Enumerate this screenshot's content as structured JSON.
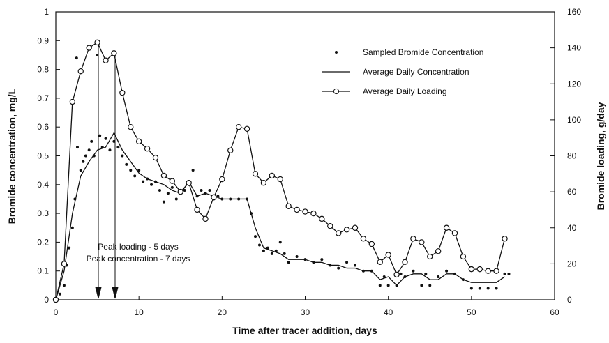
{
  "chart_data": {
    "type": "line",
    "xlabel": "Time  after  tracer  addition,  days",
    "ylabel": "Bromide   concentration,   mg/L",
    "y2label": "Bromide   loading,   g/day",
    "annotations": [
      "Peak loading  - 5 days",
      "Peak concentration - 7 days"
    ],
    "xlim": [
      0,
      60
    ],
    "xticks": [
      0,
      10,
      20,
      30,
      40,
      50,
      60
    ],
    "ylim": [
      0,
      1
    ],
    "yticks": [
      0,
      0.1,
      0.2,
      0.3,
      0.4,
      0.5,
      0.6,
      0.7,
      0.8,
      0.9,
      1
    ],
    "y2lim": [
      0,
      160
    ],
    "y2ticks": [
      0,
      20,
      40,
      60,
      80,
      100,
      120,
      140,
      160
    ],
    "legend": "upper right",
    "grid": false,
    "series": [
      {
        "name": "Sampled Bromide Concentration",
        "type": "scatter",
        "color": "#111",
        "axis": "y",
        "x": [
          0.5,
          1,
          1.3,
          1.6,
          2,
          2.3,
          2.5,
          2.6,
          3,
          3.3,
          3.6,
          4,
          4.3,
          4.6,
          5,
          5.3,
          5.6,
          6,
          6.5,
          7,
          7.5,
          8,
          8.5,
          9,
          9.5,
          10,
          10.5,
          11,
          11.5,
          12,
          12.5,
          13,
          13.5,
          14,
          14.5,
          15,
          15.5,
          16,
          16.5,
          17,
          17.5,
          18,
          18.5,
          19,
          19.5,
          20,
          21,
          22,
          23,
          23.5,
          24,
          24.5,
          25,
          25.5,
          26,
          26.5,
          27,
          27.5,
          28,
          29,
          30,
          31,
          32,
          33,
          34,
          35,
          36,
          37,
          38,
          39,
          39.5,
          40,
          41,
          41.5,
          42,
          43,
          44,
          44.5,
          45,
          46,
          47,
          48,
          49,
          50,
          51,
          52,
          53,
          54,
          54.5
        ],
        "values": [
          0.02,
          0.05,
          0.12,
          0.18,
          0.25,
          0.35,
          0.84,
          0.53,
          0.45,
          0.48,
          0.5,
          0.52,
          0.55,
          0.5,
          0.85,
          0.57,
          0.53,
          0.56,
          0.52,
          0.55,
          0.53,
          0.5,
          0.47,
          0.45,
          0.43,
          0.45,
          0.41,
          0.42,
          0.4,
          0.41,
          0.38,
          0.34,
          0.37,
          0.39,
          0.35,
          0.37,
          0.38,
          0.4,
          0.45,
          0.36,
          0.38,
          0.37,
          0.38,
          0.35,
          0.36,
          0.35,
          0.35,
          0.35,
          0.35,
          0.3,
          0.22,
          0.19,
          0.17,
          0.18,
          0.16,
          0.17,
          0.2,
          0.16,
          0.13,
          0.15,
          0.14,
          0.13,
          0.14,
          0.12,
          0.11,
          0.13,
          0.12,
          0.1,
          0.1,
          0.05,
          0.08,
          0.05,
          0.05,
          0.09,
          0.08,
          0.1,
          0.05,
          0.09,
          0.05,
          0.08,
          0.1,
          0.09,
          0.07,
          0.04,
          0.04,
          0.04,
          0.04,
          0.09,
          0.09
        ]
      },
      {
        "name": "Average Daily Concentration",
        "type": "line",
        "color": "#111",
        "axis": "y",
        "x": [
          0,
          1,
          2,
          3,
          4,
          5,
          6,
          7,
          8,
          9,
          10,
          11,
          12,
          13,
          14,
          15,
          16,
          17,
          18,
          19,
          20,
          21,
          22,
          23,
          24,
          25,
          26,
          27,
          28,
          29,
          30,
          31,
          32,
          33,
          34,
          35,
          36,
          37,
          38,
          39,
          40,
          41,
          42,
          43,
          44,
          45,
          46,
          47,
          48,
          49,
          50,
          51,
          52,
          53,
          54
        ],
        "values": [
          0,
          0.1,
          0.3,
          0.43,
          0.48,
          0.52,
          0.53,
          0.58,
          0.52,
          0.48,
          0.44,
          0.42,
          0.41,
          0.4,
          0.38,
          0.37,
          0.41,
          0.36,
          0.37,
          0.36,
          0.35,
          0.35,
          0.35,
          0.35,
          0.25,
          0.18,
          0.17,
          0.16,
          0.14,
          0.14,
          0.14,
          0.13,
          0.13,
          0.12,
          0.12,
          0.11,
          0.11,
          0.1,
          0.1,
          0.07,
          0.08,
          0.05,
          0.08,
          0.09,
          0.09,
          0.07,
          0.07,
          0.09,
          0.09,
          0.07,
          0.06,
          0.06,
          0.06,
          0.06,
          0.08
        ]
      },
      {
        "name": "Average Daily Loading",
        "type": "line-marker",
        "color": "#111",
        "axis": "y2",
        "x": [
          0,
          1,
          2,
          3,
          4,
          5,
          6,
          7,
          8,
          9,
          10,
          11,
          12,
          13,
          14,
          15,
          16,
          17,
          18,
          19,
          20,
          21,
          22,
          23,
          24,
          25,
          26,
          27,
          28,
          29,
          30,
          31,
          32,
          33,
          34,
          35,
          36,
          37,
          38,
          39,
          40,
          41,
          42,
          43,
          44,
          45,
          46,
          47,
          48,
          49,
          50,
          51,
          52,
          53,
          54
        ],
        "values": [
          0,
          20,
          110,
          127,
          140,
          143,
          133,
          137,
          115,
          96,
          88,
          84,
          79,
          69,
          66,
          60,
          65,
          50,
          45,
          57,
          67,
          83,
          96,
          95,
          70,
          65,
          69,
          67,
          52,
          50,
          49,
          48,
          45,
          41,
          37,
          39,
          40,
          34,
          31,
          21,
          25,
          14,
          21,
          34,
          32,
          24,
          27,
          40,
          37,
          24,
          17,
          17,
          16,
          16,
          34
        ]
      }
    ]
  }
}
